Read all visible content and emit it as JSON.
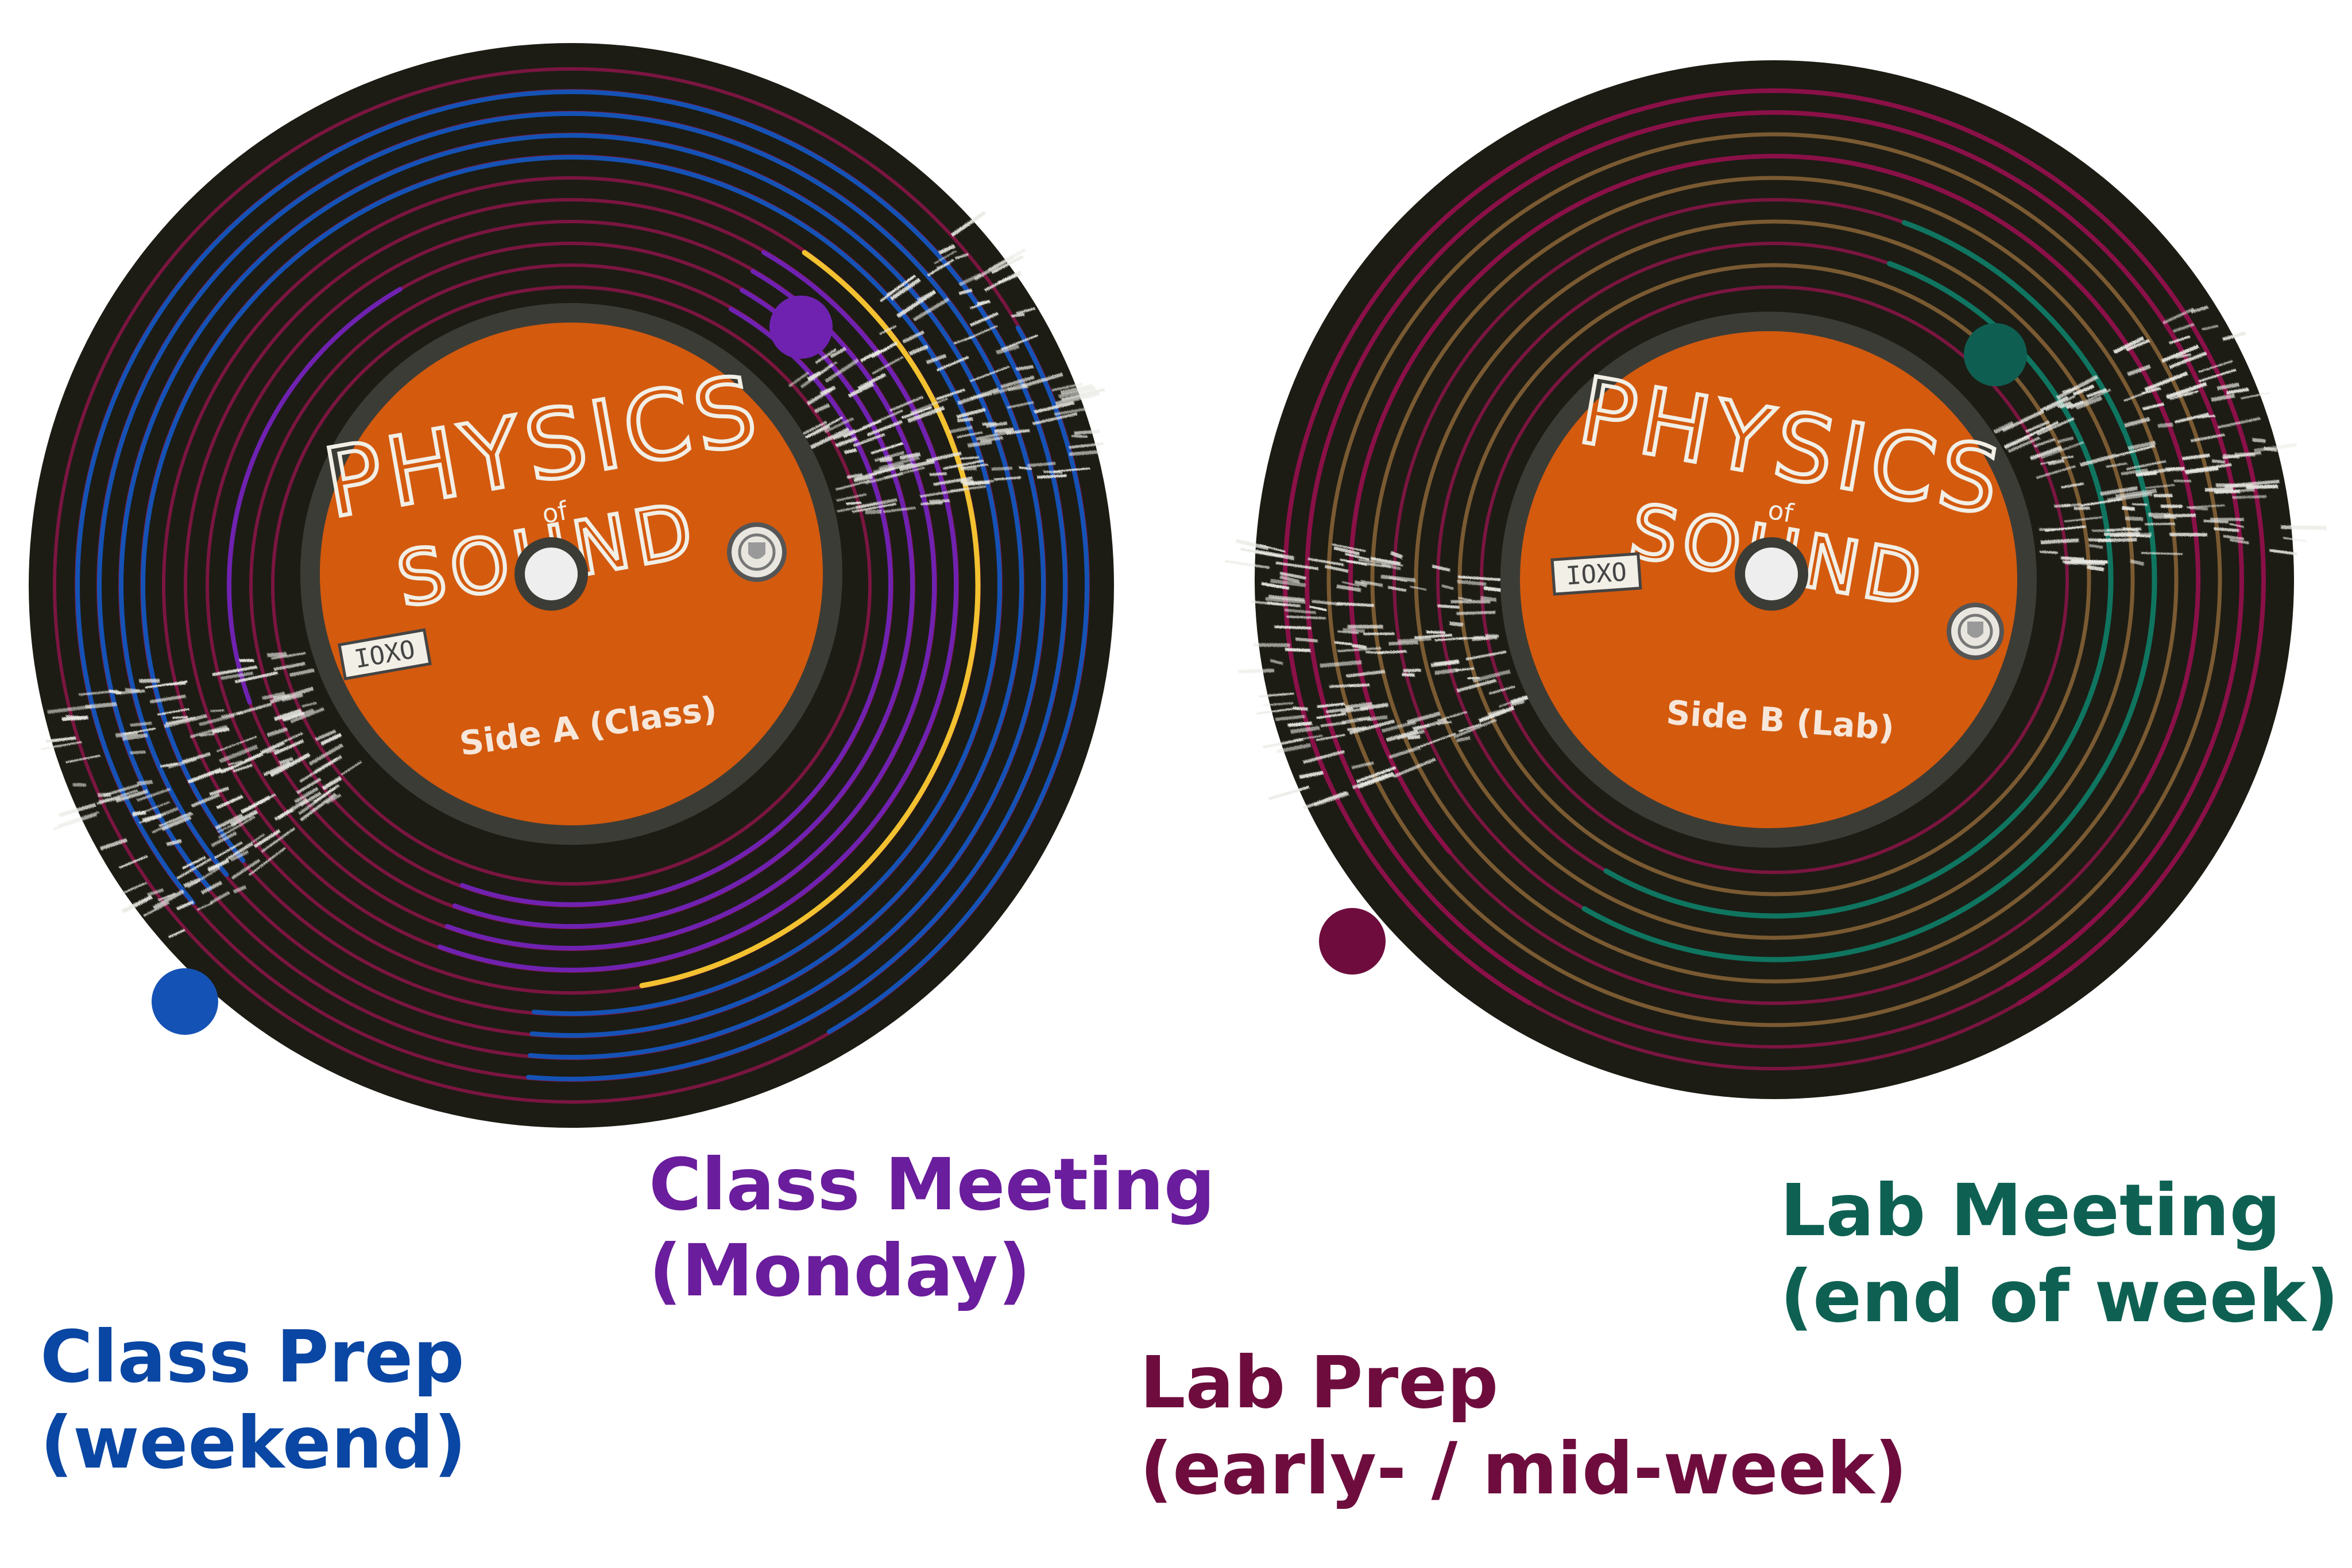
{
  "records": [
    {
      "id": "side-a",
      "label_lines": [
        "PHYSICS",
        "of",
        "SOUND"
      ],
      "side_text": "Side A (Class)",
      "colors": {
        "vinyl": "#1c1c14",
        "label": "#d45a0e",
        "label_ring": "#3c3c36",
        "groove": "#7a1540",
        "hole": "#eeeeee"
      }
    },
    {
      "id": "side-b",
      "label_lines": [
        "PHYSICS",
        "of",
        "SOUND"
      ],
      "side_text": "Side B (Lab)",
      "colors": {
        "vinyl": "#1c1c14",
        "label": "#d45a0e",
        "label_ring": "#3c3c36",
        "groove": "#7a1540",
        "hole": "#eeeeee"
      }
    }
  ],
  "captions": [
    {
      "id": "class-prep",
      "lines": [
        "Class Prep",
        "(weekend)"
      ],
      "color": "#0a46a3"
    },
    {
      "id": "class-meeting",
      "lines": [
        "Class Meeting",
        "(Monday)"
      ],
      "color": "#6a1d9c"
    },
    {
      "id": "lab-prep",
      "lines": [
        "Lab Prep",
        "(early- / mid-week)"
      ],
      "color": "#6e0d3d"
    },
    {
      "id": "lab-meeting",
      "lines": [
        "Lab Meeting",
        "(end of week)"
      ],
      "color": "#0e6152"
    }
  ],
  "track_colors": {
    "class_prep": "#1552b5",
    "class_meeting": "#6f22b0",
    "class_highlight": "#f2c230",
    "lab_prep": "#8a1048",
    "lab_meeting": "#0f7560",
    "lab_groove": "#7a5a32"
  }
}
